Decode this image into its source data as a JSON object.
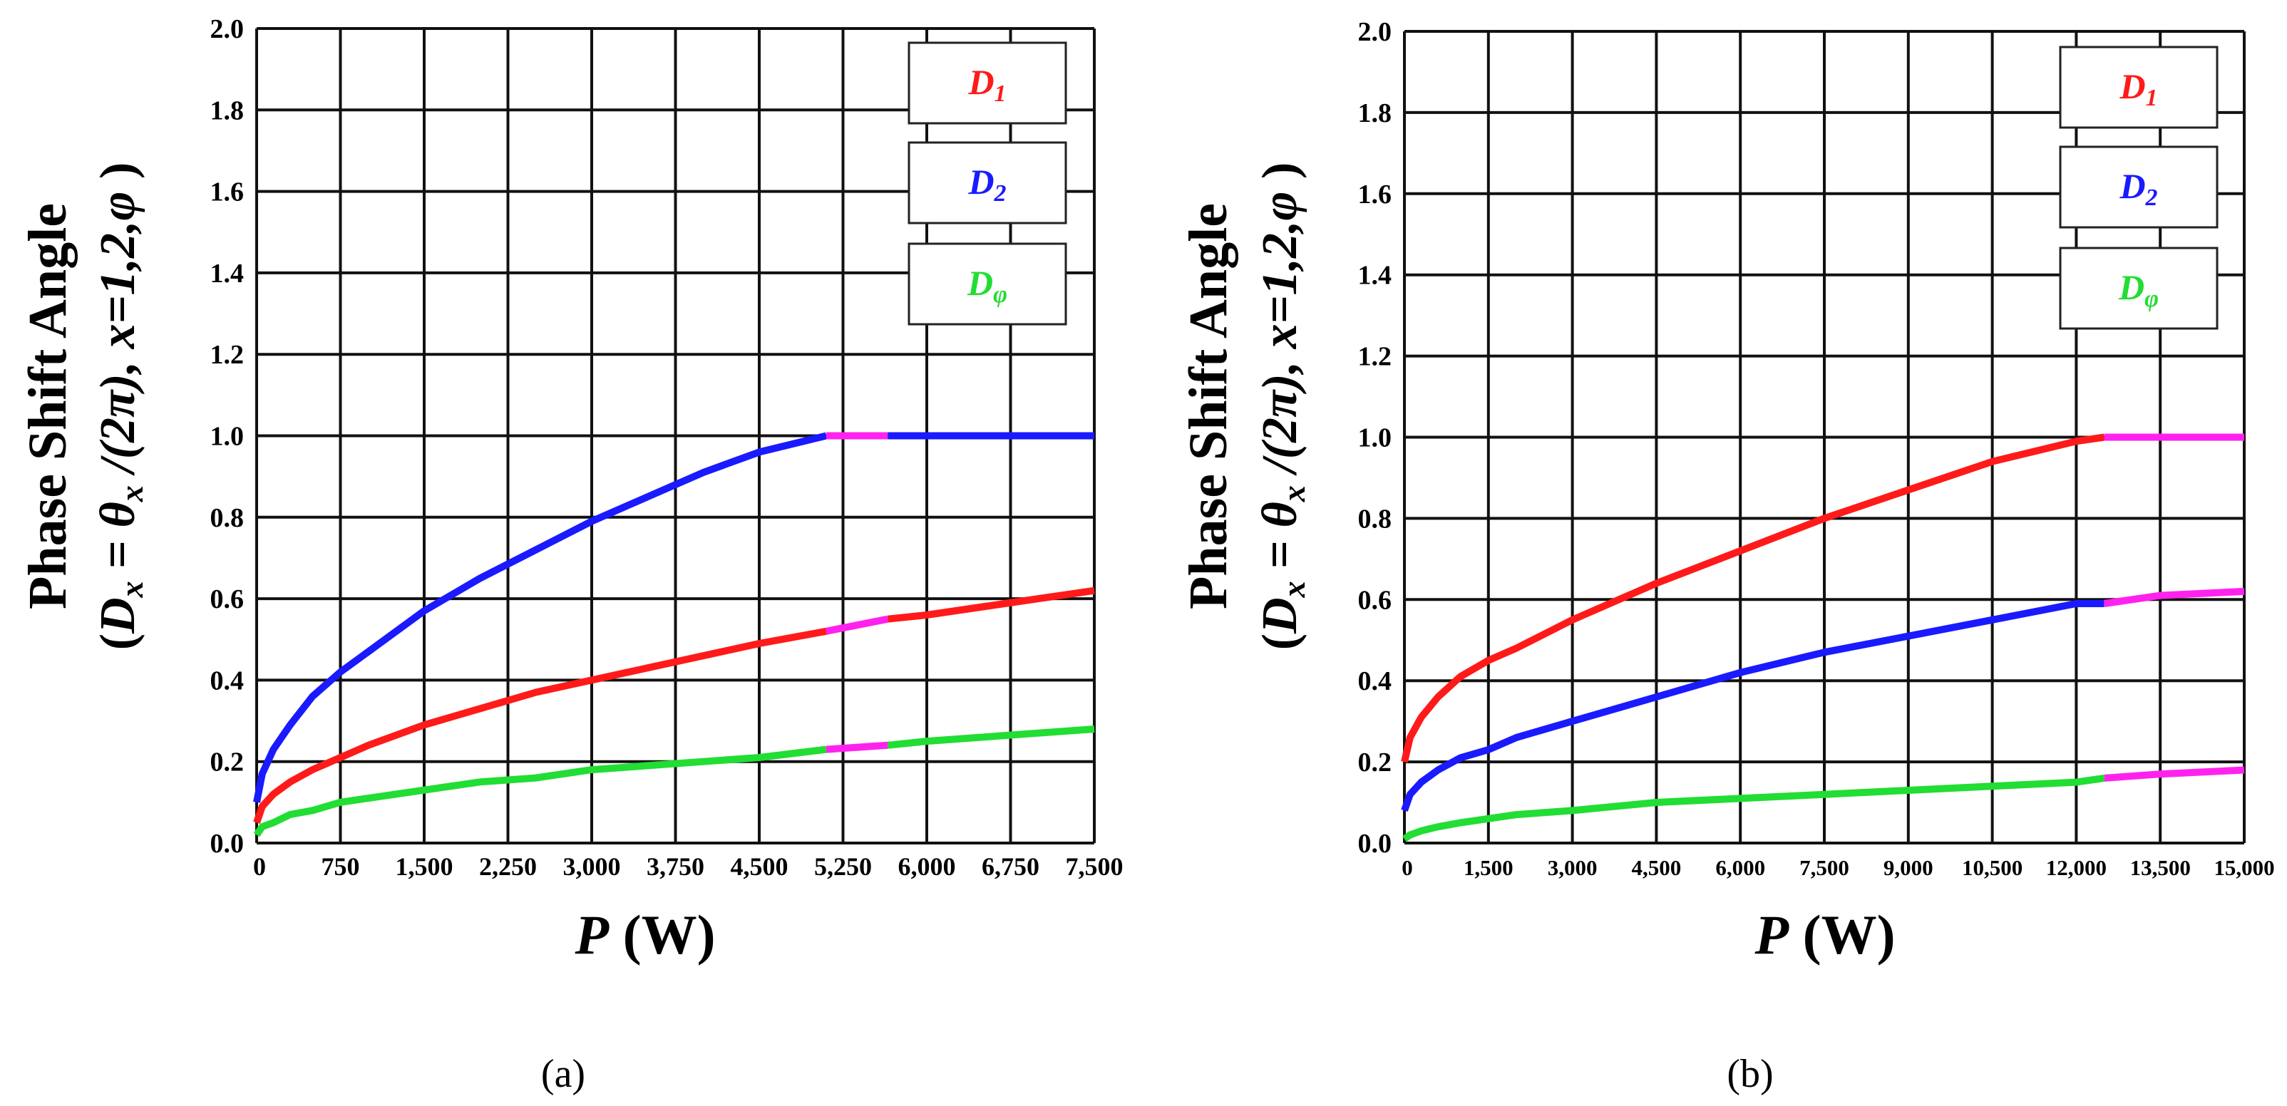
{
  "figure": {
    "panels": [
      "(a)",
      "(b)"
    ]
  },
  "colors": {
    "D1": "#ff1a1a",
    "D2": "#1a1aff",
    "Dphi": "#22dd33",
    "transition": "#ff22ee",
    "grid": "#111111"
  },
  "chart_data": [
    {
      "type": "line",
      "panel": "(a)",
      "xlabel": {
        "var": "P",
        "unit": "(W)"
      },
      "ylabel": {
        "line1": "Phase Shift Angle",
        "line2": {
          "open": "(",
          "D": "D",
          "x": "x",
          "eq": " = ",
          "theta": "θ",
          "tx": "x",
          "over": " /(2π), ",
          "xv": "x",
          "rng": "=1,2,φ ",
          "close": ")"
        }
      },
      "xlim": [
        0,
        7500
      ],
      "ylim": [
        0,
        2.0
      ],
      "x_ticks": [
        0,
        750,
        1500,
        2250,
        3000,
        3750,
        4500,
        5250,
        6000,
        6750,
        7500
      ],
      "x_tick_labels": [
        "0",
        "750",
        "1,500",
        "2,250",
        "3,000",
        "3,750",
        "4,500",
        "5,250",
        "6,000",
        "6,750",
        "7,500"
      ],
      "y_ticks": [
        0,
        0.2,
        0.4,
        0.6,
        0.8,
        1.0,
        1.2,
        1.4,
        1.6,
        1.8,
        2.0
      ],
      "y_tick_labels": [
        "0.0",
        "0.2",
        "0.4",
        "0.6",
        "0.8",
        "1.0",
        "1.2",
        "1.4",
        "1.6",
        "1.8",
        "2.0"
      ],
      "legend": [
        {
          "key": "D1",
          "base": "D",
          "sub": "1"
        },
        {
          "key": "D2",
          "base": "D",
          "sub": "2"
        },
        {
          "key": "Dphi",
          "base": "D",
          "sub": "φ"
        }
      ],
      "legend_position": "top-right",
      "series": [
        {
          "name": "D2",
          "color_key": "D2",
          "transition": [
            5100,
            5650
          ],
          "x": [
            0,
            50,
            150,
            300,
            500,
            750,
            1000,
            1500,
            2000,
            2500,
            3000,
            3500,
            4000,
            4500,
            5100,
            5650,
            6000,
            7500
          ],
          "y": [
            0.1,
            0.17,
            0.23,
            0.29,
            0.36,
            0.42,
            0.47,
            0.57,
            0.65,
            0.72,
            0.79,
            0.85,
            0.91,
            0.96,
            1.0,
            1.0,
            1.0,
            1.0
          ]
        },
        {
          "name": "D1",
          "color_key": "D1",
          "transition": [
            5100,
            5650
          ],
          "x": [
            0,
            50,
            150,
            300,
            500,
            750,
            1000,
            1500,
            2000,
            2500,
            3000,
            3500,
            4000,
            4500,
            5100,
            5650,
            6000,
            6500,
            7000,
            7500
          ],
          "y": [
            0.05,
            0.09,
            0.12,
            0.15,
            0.18,
            0.21,
            0.24,
            0.29,
            0.33,
            0.37,
            0.4,
            0.43,
            0.46,
            0.49,
            0.52,
            0.55,
            0.56,
            0.58,
            0.6,
            0.62
          ]
        },
        {
          "name": "Dphi",
          "color_key": "Dphi",
          "transition": [
            5100,
            5650
          ],
          "x": [
            0,
            50,
            150,
            300,
            500,
            750,
            1000,
            1500,
            2000,
            2500,
            3000,
            3500,
            4000,
            4500,
            5100,
            5650,
            6000,
            7500
          ],
          "y": [
            0.02,
            0.04,
            0.05,
            0.07,
            0.08,
            0.1,
            0.11,
            0.13,
            0.15,
            0.16,
            0.18,
            0.19,
            0.2,
            0.21,
            0.23,
            0.24,
            0.25,
            0.28
          ]
        }
      ]
    },
    {
      "type": "line",
      "panel": "(b)",
      "xlabel": {
        "var": "P",
        "unit": "(W)"
      },
      "ylabel": {
        "line1": "Phase Shift Angle",
        "line2": {
          "open": "(",
          "D": "D",
          "x": "x",
          "eq": " = ",
          "theta": "θ",
          "tx": "x",
          "over": " /(2π), ",
          "xv": "x",
          "rng": "=1,2,φ ",
          "close": ")"
        }
      },
      "xlim": [
        0,
        15000
      ],
      "ylim": [
        0,
        2.0
      ],
      "x_ticks": [
        0,
        1500,
        3000,
        4500,
        6000,
        7500,
        9000,
        10500,
        12000,
        13500,
        15000
      ],
      "x_tick_labels": [
        "0",
        "1,500",
        "3,000",
        "4,500",
        "6,000",
        "7,500",
        "9,000",
        "10,500",
        "12,000",
        "13,500",
        "15,000"
      ],
      "y_ticks": [
        0,
        0.2,
        0.4,
        0.6,
        0.8,
        1.0,
        1.2,
        1.4,
        1.6,
        1.8,
        2.0
      ],
      "y_tick_labels": [
        "0.0",
        "0.2",
        "0.4",
        "0.6",
        "0.8",
        "1.0",
        "1.2",
        "1.4",
        "1.6",
        "1.8",
        "2.0"
      ],
      "legend": [
        {
          "key": "D1",
          "base": "D",
          "sub": "1"
        },
        {
          "key": "D2",
          "base": "D",
          "sub": "2"
        },
        {
          "key": "Dphi",
          "base": "D",
          "sub": "φ"
        }
      ],
      "legend_position": "top-right",
      "series": [
        {
          "name": "D1",
          "color_key": "D1",
          "transition": [
            12500,
            15000
          ],
          "x": [
            0,
            100,
            300,
            600,
            1000,
            1500,
            2000,
            3000,
            4500,
            6000,
            7500,
            9000,
            10500,
            12000,
            12500,
            13500,
            15000
          ],
          "y": [
            0.2,
            0.26,
            0.31,
            0.36,
            0.41,
            0.45,
            0.48,
            0.55,
            0.64,
            0.72,
            0.8,
            0.87,
            0.94,
            0.99,
            1.0,
            1.0,
            1.0
          ]
        },
        {
          "name": "D2",
          "color_key": "D2",
          "transition": [
            12500,
            15000
          ],
          "x": [
            0,
            100,
            300,
            600,
            1000,
            1500,
            2000,
            3000,
            4500,
            6000,
            7500,
            9000,
            10500,
            12000,
            12500,
            13500,
            15000
          ],
          "y": [
            0.08,
            0.12,
            0.15,
            0.18,
            0.21,
            0.23,
            0.26,
            0.3,
            0.36,
            0.42,
            0.47,
            0.51,
            0.55,
            0.59,
            0.59,
            0.61,
            0.62
          ]
        },
        {
          "name": "Dphi",
          "color_key": "Dphi",
          "transition": [
            12500,
            15000
          ],
          "x": [
            0,
            100,
            300,
            600,
            1000,
            1500,
            2000,
            3000,
            4500,
            6000,
            7500,
            9000,
            10500,
            12000,
            12500,
            13500,
            15000
          ],
          "y": [
            0.01,
            0.02,
            0.03,
            0.04,
            0.05,
            0.06,
            0.07,
            0.08,
            0.1,
            0.11,
            0.12,
            0.13,
            0.14,
            0.15,
            0.16,
            0.17,
            0.18
          ]
        }
      ]
    }
  ]
}
